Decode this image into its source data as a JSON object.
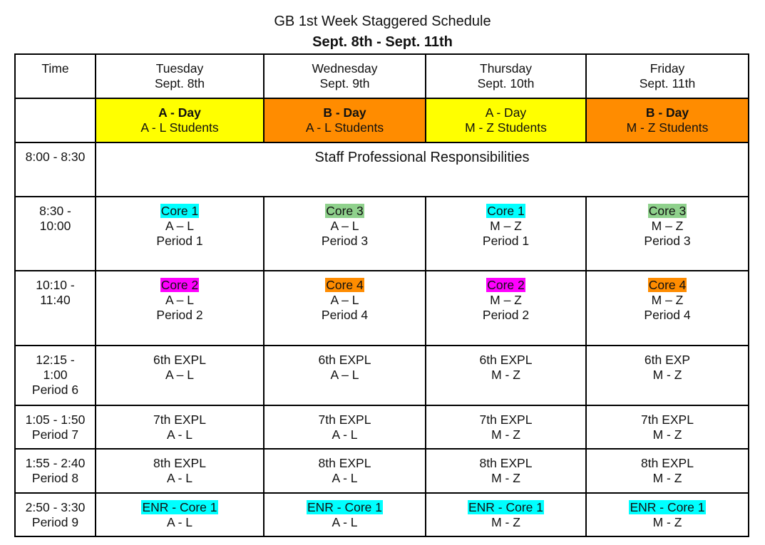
{
  "title": "GB  1st Week Staggered Schedule",
  "subtitle": "Sept. 8th - Sept. 11th",
  "colors": {
    "a_day": "#ffff00",
    "b_day": "#ff8c00",
    "core1": "#00ffff",
    "core2": "#ff00ff",
    "core3": "#8fd18c",
    "core4": "#ff8c00",
    "enr": "#00ffff"
  },
  "header": {
    "time_label": "Time",
    "days": [
      {
        "day": "Tuesday",
        "date": "Sept. 8th"
      },
      {
        "day": "Wednesday",
        "date": "Sept. 9th"
      },
      {
        "day": "Thursday",
        "date": "Sept. 10th"
      },
      {
        "day": "Friday",
        "date": "Sept. 11th"
      }
    ]
  },
  "day_types": [
    {
      "type": "A - Day",
      "students": "A - L Students"
    },
    {
      "type": "B - Day",
      "students": "A - L Students"
    },
    {
      "type": "A - Day",
      "students": "M - Z Students"
    },
    {
      "type": "B - Day",
      "students": "M - Z Students"
    }
  ],
  "rows": {
    "staff": {
      "time": "8:00 - 8:30",
      "text": "Staff Professional Responsibilities"
    },
    "block1": {
      "time1": "8:30 -",
      "time2": "10:00",
      "cells": [
        {
          "core": "Core 1",
          "group": "A – L",
          "period": "Period 1"
        },
        {
          "core": "Core 3",
          "group": "A – L",
          "period": "Period 3"
        },
        {
          "core": "Core 1",
          "group": "M – Z",
          "period": "Period 1"
        },
        {
          "core": "Core 3",
          "group": "M – Z",
          "period": "Period 3"
        }
      ]
    },
    "block2": {
      "time1": "10:10 -",
      "time2": "11:40",
      "cells": [
        {
          "core": "Core 2",
          "group": "A – L",
          "period": "Period 2"
        },
        {
          "core": "Core 4",
          "group": "A – L",
          "period": "Period 4"
        },
        {
          "core": "Core 2",
          "group": "M – Z",
          "period": "Period 2"
        },
        {
          "core": "Core 4",
          "group": "M – Z",
          "period": "Period 4"
        }
      ]
    },
    "p6": {
      "time1": "12:15 -",
      "time2": "1:00",
      "time3": "Period 6",
      "cells": [
        {
          "name": "6th EXPL",
          "group": "A – L"
        },
        {
          "name": "6th EXPL",
          "group": "A – L"
        },
        {
          "name": "6th EXPL",
          "group": "M - Z"
        },
        {
          "name": "6th EXP",
          "group": "M - Z"
        }
      ]
    },
    "p7": {
      "time1": "1:05 - 1:50",
      "time2": "Period 7",
      "cells": [
        {
          "name": "7th EXPL",
          "group": "A - L"
        },
        {
          "name": "7th EXPL",
          "group": "A - L"
        },
        {
          "name": "7th EXPL",
          "group": "M - Z"
        },
        {
          "name": "7th EXPL",
          "group": "M - Z"
        }
      ]
    },
    "p8": {
      "time1": "1:55 - 2:40",
      "time2": "Period 8",
      "cells": [
        {
          "name": "8th EXPL",
          "group": "A - L"
        },
        {
          "name": "8th EXPL",
          "group": "A - L"
        },
        {
          "name": "8th EXPL",
          "group": "M - Z"
        },
        {
          "name": "8th EXPL",
          "group": "M - Z"
        }
      ]
    },
    "p9": {
      "time1": "2:50 - 3:30",
      "time2": "Period 9",
      "cells": [
        {
          "name": "ENR - Core 1",
          "group": "A - L"
        },
        {
          "name": "ENR - Core 1",
          "group": "A - L"
        },
        {
          "name": "ENR - Core 1",
          "group": "M - Z"
        },
        {
          "name": "ENR - Core 1",
          "group": "M - Z"
        }
      ]
    }
  }
}
